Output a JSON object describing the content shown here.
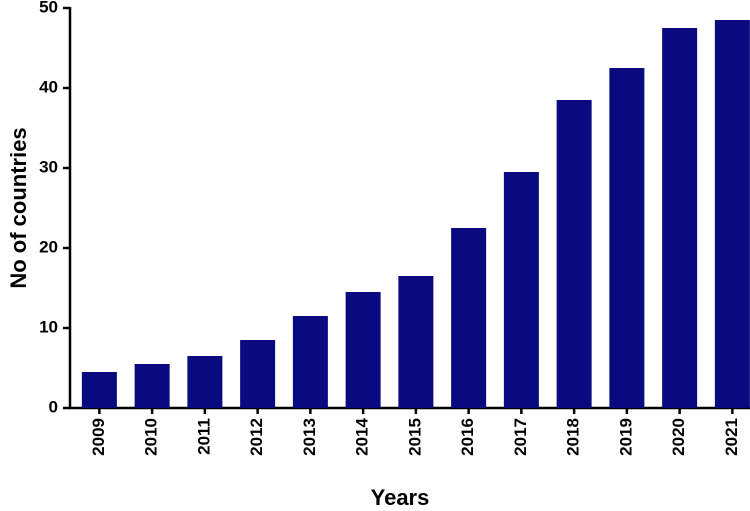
{
  "chart_data": {
    "type": "bar",
    "xlabel": "Years",
    "ylabel": "No of countries",
    "categories": [
      "2009",
      "2010",
      "2011",
      "2012",
      "2013",
      "2014",
      "2015",
      "2016",
      "2017",
      "2018",
      "2019",
      "2020",
      "2021"
    ],
    "values": [
      4.5,
      5.5,
      6.5,
      8.5,
      11.5,
      14.5,
      16.5,
      22.5,
      29.5,
      38.5,
      42.5,
      47.5,
      48.5
    ],
    "color": "#0a0a80",
    "ylim": [
      0,
      50
    ],
    "yticks": [
      0,
      10,
      20,
      30,
      40,
      50
    ],
    "grid": false
  }
}
